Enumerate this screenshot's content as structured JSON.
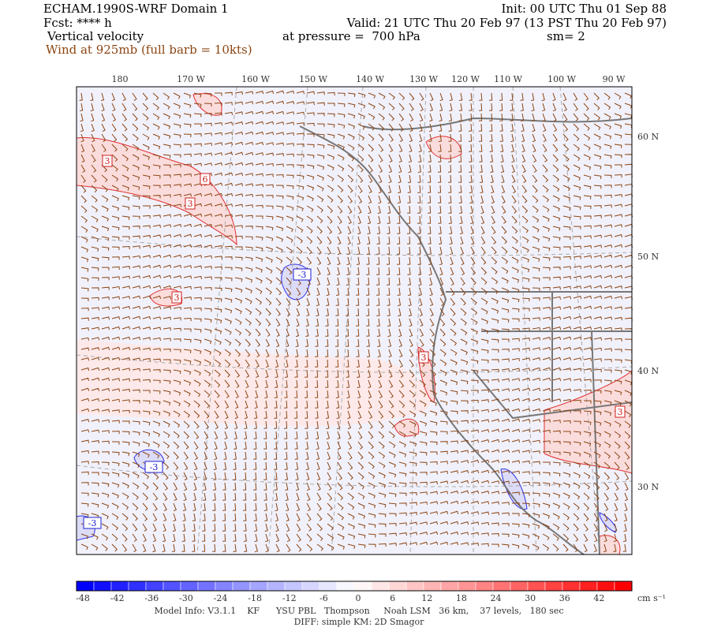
{
  "header": {
    "title": "ECHAM.1990S-WRF Domain 1",
    "init": "Init: 00 UTC Thu 01 Sep 88",
    "forecast": "Fcst: **** h",
    "valid": "Valid: 21 UTC Thu 20 Feb 97 (13 PST Thu 20 Feb 97)",
    "field": "Vertical velocity",
    "pressure": "at pressure =  700 hPa",
    "smoothing": "sm= 2",
    "wind": "Wind at 925mb (full barb = 10kts)"
  },
  "map": {
    "longitude_labels": [
      "180",
      "170 W",
      "160 W",
      "150 W",
      "140 W",
      "130 W",
      "120 W",
      "110 W",
      "100 W",
      "90 W"
    ],
    "latitude_labels": [
      "60 N",
      "50 N",
      "40 N",
      "30 N"
    ],
    "contour_labels": [
      "3",
      "6",
      "3",
      "3",
      "3",
      "3",
      "-3",
      "-3",
      "-3"
    ]
  },
  "colorbar": {
    "ticks": [
      -48,
      -42,
      -36,
      -30,
      -24,
      -18,
      -12,
      -6,
      0,
      6,
      12,
      18,
      24,
      30,
      36,
      42
    ],
    "unit": "cm s⁻¹"
  },
  "footer": {
    "model_info": "Model Info: V3.1.1    KF      YSU PBL   Thompson     Noah LSM   36 km,    37 levels,   180 sec",
    "diff": "DIFF: simple KM: 2D Smagor"
  }
}
